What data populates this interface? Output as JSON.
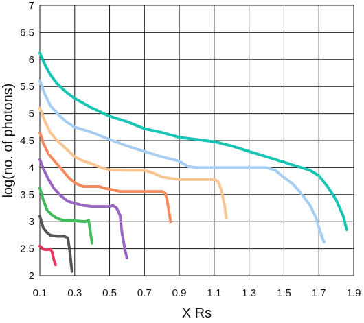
{
  "chart_data": {
    "type": "line",
    "xlabel": "X Rs",
    "ylabel": "log(no. of photons)",
    "xlim": [
      0.1,
      1.9
    ],
    "ylim": [
      2,
      7
    ],
    "xticks": [
      "0.1",
      "0.3",
      "0.5",
      "0.7",
      "0.9",
      "1.1",
      "1.3",
      "1.5",
      "1.7",
      "1.9"
    ],
    "yticks": [
      "2",
      "2.5",
      "3",
      "3.5",
      "4",
      "4.5",
      "5",
      "5.5",
      "6",
      "6.5",
      "7"
    ],
    "grid": true,
    "series": [
      {
        "color": "#e8365e",
        "points": [
          [
            0.1,
            2.55
          ],
          [
            0.12,
            2.49
          ],
          [
            0.14,
            2.48
          ],
          [
            0.16,
            2.49
          ],
          [
            0.17,
            2.44
          ],
          [
            0.18,
            2.3
          ],
          [
            0.19,
            2.2
          ]
        ]
      },
      {
        "color": "#555555",
        "points": [
          [
            0.1,
            3.1
          ],
          [
            0.12,
            2.88
          ],
          [
            0.14,
            2.8
          ],
          [
            0.16,
            2.75
          ],
          [
            0.18,
            2.74
          ],
          [
            0.2,
            2.73
          ],
          [
            0.22,
            2.73
          ],
          [
            0.24,
            2.73
          ],
          [
            0.26,
            2.7
          ],
          [
            0.27,
            2.5
          ],
          [
            0.28,
            2.2
          ],
          [
            0.285,
            2.08
          ]
        ]
      },
      {
        "color": "#3fbb5a",
        "points": [
          [
            0.1,
            3.62
          ],
          [
            0.12,
            3.4
          ],
          [
            0.14,
            3.22
          ],
          [
            0.17,
            3.12
          ],
          [
            0.2,
            3.06
          ],
          [
            0.24,
            3.02
          ],
          [
            0.28,
            3.02
          ],
          [
            0.32,
            3.01
          ],
          [
            0.36,
            3.0
          ],
          [
            0.38,
            3.02
          ],
          [
            0.39,
            2.8
          ],
          [
            0.4,
            2.6
          ]
        ]
      },
      {
        "color": "#9a66c4",
        "points": [
          [
            0.1,
            4.15
          ],
          [
            0.12,
            3.98
          ],
          [
            0.15,
            3.78
          ],
          [
            0.18,
            3.62
          ],
          [
            0.22,
            3.48
          ],
          [
            0.26,
            3.38
          ],
          [
            0.3,
            3.34
          ],
          [
            0.35,
            3.3
          ],
          [
            0.4,
            3.28
          ],
          [
            0.45,
            3.28
          ],
          [
            0.5,
            3.28
          ],
          [
            0.52,
            3.3
          ],
          [
            0.54,
            3.25
          ],
          [
            0.56,
            3.12
          ],
          [
            0.57,
            2.82
          ],
          [
            0.59,
            2.45
          ],
          [
            0.6,
            2.33
          ]
        ]
      },
      {
        "color": "#f58a5e",
        "points": [
          [
            0.1,
            4.65
          ],
          [
            0.12,
            4.45
          ],
          [
            0.15,
            4.25
          ],
          [
            0.19,
            4.1
          ],
          [
            0.23,
            3.95
          ],
          [
            0.27,
            3.8
          ],
          [
            0.31,
            3.7
          ],
          [
            0.35,
            3.65
          ],
          [
            0.4,
            3.65
          ],
          [
            0.44,
            3.65
          ],
          [
            0.47,
            3.62
          ],
          [
            0.5,
            3.6
          ],
          [
            0.53,
            3.58
          ],
          [
            0.56,
            3.56
          ],
          [
            0.6,
            3.56
          ],
          [
            0.7,
            3.56
          ],
          [
            0.8,
            3.56
          ],
          [
            0.82,
            3.52
          ],
          [
            0.83,
            3.4
          ],
          [
            0.84,
            3.2
          ],
          [
            0.85,
            3.0
          ]
        ]
      },
      {
        "color": "#f9c593",
        "points": [
          [
            0.1,
            5.1
          ],
          [
            0.13,
            4.85
          ],
          [
            0.16,
            4.65
          ],
          [
            0.2,
            4.5
          ],
          [
            0.25,
            4.35
          ],
          [
            0.3,
            4.2
          ],
          [
            0.35,
            4.12
          ],
          [
            0.4,
            4.07
          ],
          [
            0.45,
            4.0
          ],
          [
            0.5,
            3.96
          ],
          [
            0.6,
            3.95
          ],
          [
            0.7,
            3.95
          ],
          [
            0.75,
            3.9
          ],
          [
            0.8,
            3.83
          ],
          [
            0.85,
            3.8
          ],
          [
            0.9,
            3.78
          ],
          [
            1.0,
            3.78
          ],
          [
            1.05,
            3.78
          ],
          [
            1.1,
            3.78
          ],
          [
            1.12,
            3.75
          ],
          [
            1.14,
            3.6
          ],
          [
            1.16,
            3.3
          ],
          [
            1.17,
            3.06
          ]
        ]
      },
      {
        "color": "#a6cdf2",
        "points": [
          [
            0.1,
            5.6
          ],
          [
            0.13,
            5.35
          ],
          [
            0.16,
            5.15
          ],
          [
            0.2,
            5.0
          ],
          [
            0.25,
            4.85
          ],
          [
            0.3,
            4.75
          ],
          [
            0.4,
            4.65
          ],
          [
            0.5,
            4.52
          ],
          [
            0.6,
            4.4
          ],
          [
            0.7,
            4.3
          ],
          [
            0.8,
            4.2
          ],
          [
            0.9,
            4.12
          ],
          [
            0.95,
            4.02
          ],
          [
            1.0,
            4.0
          ],
          [
            1.1,
            4.0
          ],
          [
            1.2,
            4.0
          ],
          [
            1.3,
            4.0
          ],
          [
            1.4,
            4.0
          ],
          [
            1.45,
            3.95
          ],
          [
            1.5,
            3.82
          ],
          [
            1.55,
            3.7
          ],
          [
            1.6,
            3.52
          ],
          [
            1.65,
            3.3
          ],
          [
            1.68,
            3.1
          ],
          [
            1.7,
            2.9
          ],
          [
            1.72,
            2.7
          ],
          [
            1.73,
            2.62
          ]
        ]
      },
      {
        "color": "#18c4b4",
        "points": [
          [
            0.1,
            6.12
          ],
          [
            0.13,
            5.9
          ],
          [
            0.16,
            5.72
          ],
          [
            0.2,
            5.55
          ],
          [
            0.25,
            5.4
          ],
          [
            0.3,
            5.28
          ],
          [
            0.4,
            5.1
          ],
          [
            0.5,
            4.95
          ],
          [
            0.6,
            4.85
          ],
          [
            0.7,
            4.72
          ],
          [
            0.8,
            4.65
          ],
          [
            0.9,
            4.56
          ],
          [
            1.0,
            4.52
          ],
          [
            1.1,
            4.48
          ],
          [
            1.2,
            4.4
          ],
          [
            1.3,
            4.3
          ],
          [
            1.4,
            4.2
          ],
          [
            1.5,
            4.1
          ],
          [
            1.6,
            4.0
          ],
          [
            1.65,
            3.95
          ],
          [
            1.7,
            3.85
          ],
          [
            1.75,
            3.65
          ],
          [
            1.8,
            3.4
          ],
          [
            1.84,
            3.1
          ],
          [
            1.86,
            2.85
          ]
        ]
      }
    ]
  }
}
